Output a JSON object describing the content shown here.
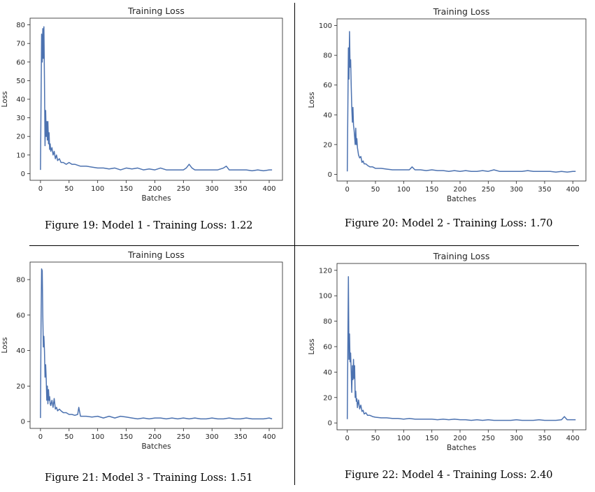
{
  "chart_data": [
    {
      "type": "line",
      "title": "Training Loss",
      "xlabel": "Batches",
      "ylabel": "Loss",
      "xlim": [
        0,
        405
      ],
      "ylim": [
        0,
        80
      ],
      "xticks": [
        0,
        50,
        100,
        150,
        200,
        250,
        300,
        350,
        400
      ],
      "yticks": [
        0,
        10,
        20,
        30,
        40,
        50,
        60,
        70,
        80
      ],
      "grid": false,
      "caption": "Figure 19: Model 1 - Training Loss: 1.22",
      "series": [
        {
          "color": "#4c72b0",
          "x": [
            0,
            2,
            3,
            4,
            5,
            6,
            7,
            8,
            9,
            10,
            11,
            12,
            13,
            14,
            15,
            16,
            17,
            18,
            20,
            22,
            24,
            26,
            28,
            30,
            33,
            36,
            40,
            45,
            50,
            55,
            60,
            70,
            80,
            90,
            100,
            110,
            120,
            130,
            140,
            150,
            160,
            170,
            180,
            190,
            200,
            210,
            220,
            230,
            240,
            250,
            255,
            260,
            265,
            270,
            280,
            290,
            300,
            310,
            320,
            325,
            330,
            340,
            350,
            360,
            370,
            380,
            390,
            400,
            405
          ],
          "y": [
            2,
            75,
            60,
            78,
            62,
            79,
            50,
            15,
            34,
            20,
            28,
            18,
            28,
            16,
            22,
            13,
            16,
            12,
            14,
            10,
            12,
            8,
            10,
            7,
            8,
            6,
            6,
            5,
            6,
            5,
            5,
            4,
            4,
            3.5,
            3,
            3,
            2.5,
            3,
            2,
            3,
            2.5,
            3,
            2,
            2.5,
            2,
            3,
            2,
            2,
            2,
            2,
            3,
            5,
            3,
            2,
            2,
            2,
            2,
            2,
            3,
            4,
            2,
            2,
            2,
            2,
            1.5,
            2,
            1.5,
            2,
            2
          ]
        }
      ]
    },
    {
      "type": "line",
      "title": "Training Loss",
      "xlabel": "Batches",
      "ylabel": "Loss",
      "xlim": [
        0,
        405
      ],
      "ylim": [
        0,
        100
      ],
      "xticks": [
        0,
        50,
        100,
        150,
        200,
        250,
        300,
        350,
        400
      ],
      "yticks": [
        0,
        20,
        40,
        60,
        80,
        100
      ],
      "grid": false,
      "caption": "Figure 20: Model 2 - Training Loss: 1.70",
      "series": [
        {
          "color": "#4c72b0",
          "x": [
            0,
            2,
            3,
            4,
            5,
            6,
            7,
            8,
            9,
            10,
            11,
            12,
            13,
            14,
            15,
            16,
            17,
            18,
            20,
            22,
            24,
            26,
            28,
            30,
            33,
            36,
            40,
            45,
            50,
            60,
            70,
            80,
            90,
            100,
            110,
            115,
            120,
            130,
            140,
            150,
            160,
            170,
            180,
            190,
            200,
            210,
            220,
            230,
            240,
            250,
            260,
            270,
            280,
            290,
            300,
            310,
            320,
            330,
            340,
            350,
            360,
            370,
            380,
            390,
            400,
            405
          ],
          "y": [
            2,
            85,
            64,
            96,
            72,
            77,
            60,
            45,
            35,
            45,
            33,
            30,
            25,
            20,
            31,
            20,
            24,
            18,
            13,
            11,
            12,
            8,
            9,
            7,
            7,
            6,
            5,
            5,
            4,
            4,
            3.5,
            3,
            3,
            3,
            3,
            5,
            3,
            3,
            2.5,
            3,
            2.5,
            2.5,
            2,
            2.5,
            2,
            2.5,
            2,
            2,
            2.5,
            2,
            3,
            2,
            2,
            2,
            2,
            2,
            2.5,
            2,
            2,
            2,
            2,
            1.5,
            2,
            1.5,
            2,
            2
          ]
        }
      ]
    },
    {
      "type": "line",
      "title": "Training Loss",
      "xlabel": "Batches",
      "ylabel": "Loss",
      "xlim": [
        0,
        405
      ],
      "ylim": [
        0,
        86
      ],
      "xticks": [
        0,
        50,
        100,
        150,
        200,
        250,
        300,
        350,
        400
      ],
      "yticks": [
        0,
        20,
        40,
        60,
        80
      ],
      "grid": false,
      "caption": "Figure 21: Model 3 - Training Loss: 1.51",
      "series": [
        {
          "color": "#4c72b0",
          "x": [
            0,
            1,
            2,
            3,
            4,
            5,
            6,
            7,
            8,
            9,
            10,
            11,
            12,
            13,
            14,
            15,
            16,
            17,
            18,
            20,
            22,
            24,
            26,
            28,
            30,
            33,
            36,
            40,
            45,
            50,
            55,
            60,
            65,
            67,
            70,
            80,
            90,
            100,
            110,
            120,
            130,
            140,
            150,
            160,
            170,
            180,
            190,
            200,
            210,
            220,
            230,
            240,
            250,
            260,
            270,
            280,
            290,
            300,
            310,
            320,
            330,
            340,
            350,
            360,
            370,
            380,
            390,
            400,
            405
          ],
          "y": [
            2,
            55,
            86,
            85,
            60,
            42,
            48,
            40,
            25,
            32,
            24,
            12,
            20,
            10,
            18,
            12,
            14,
            10,
            9,
            12,
            8,
            13,
            7,
            8,
            6,
            7,
            6,
            5,
            5,
            4,
            4,
            3.5,
            4,
            8,
            3,
            3,
            2.5,
            3,
            2,
            3,
            2,
            3,
            2.5,
            2,
            1.5,
            2,
            1.5,
            2,
            2,
            1.5,
            2,
            1.5,
            2,
            1.5,
            2,
            1.5,
            1.5,
            2,
            1.5,
            1.5,
            2,
            1.5,
            1.5,
            2,
            1.5,
            1.5,
            1.5,
            2,
            1.5
          ]
        }
      ]
    },
    {
      "type": "line",
      "title": "Training Loss",
      "xlabel": "Batches",
      "ylabel": "Loss",
      "xlim": [
        0,
        405
      ],
      "ylim": [
        0,
        120
      ],
      "xticks": [
        0,
        50,
        100,
        150,
        200,
        250,
        300,
        350,
        400
      ],
      "yticks": [
        0,
        20,
        40,
        60,
        80,
        100,
        120
      ],
      "grid": false,
      "caption": "Figure 22: Model 4 - Training Loss: 2.40",
      "series": [
        {
          "color": "#4c72b0",
          "x": [
            0,
            1,
            2,
            3,
            4,
            5,
            6,
            7,
            8,
            9,
            10,
            11,
            12,
            13,
            14,
            15,
            16,
            17,
            18,
            20,
            22,
            24,
            26,
            28,
            30,
            33,
            36,
            40,
            45,
            50,
            60,
            70,
            80,
            90,
            100,
            110,
            120,
            130,
            140,
            150,
            160,
            170,
            180,
            190,
            200,
            210,
            220,
            230,
            240,
            250,
            260,
            270,
            280,
            290,
            300,
            310,
            320,
            330,
            340,
            350,
            360,
            370,
            380,
            385,
            390,
            400,
            405
          ],
          "y": [
            3,
            60,
            115,
            50,
            70,
            48,
            55,
            40,
            24,
            45,
            34,
            50,
            35,
            45,
            20,
            25,
            17,
            19,
            12,
            18,
            11,
            14,
            9,
            10,
            7,
            8,
            6,
            6,
            5,
            4.5,
            4,
            4,
            3.5,
            3.5,
            3,
            3.5,
            3,
            3,
            3,
            3,
            2.5,
            3,
            2.5,
            3,
            2.5,
            2.5,
            2,
            2.5,
            2,
            2.5,
            2,
            2,
            2,
            2,
            2.5,
            2,
            2,
            2,
            2.5,
            2,
            2,
            2,
            2.5,
            5,
            2.5,
            2.5,
            2.5
          ]
        }
      ]
    }
  ]
}
